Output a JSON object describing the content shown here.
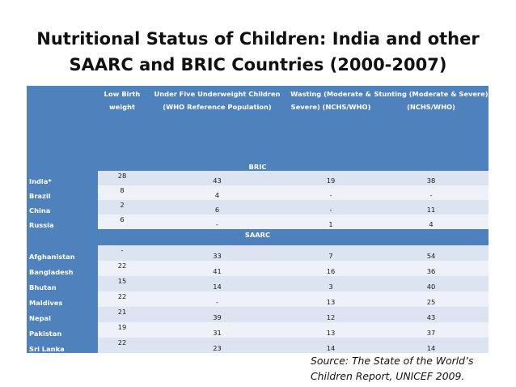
{
  "title_line1": "Nutritional Status of Children: India and other",
  "title_line2": "SAARC and BRIC Countries (2000-2007)",
  "columns": [
    "Low Birth weight",
    "Under Five Underweight Children (WHO Reference Population)",
    "Wasting (Moderate & Severe) (NCHS/WHO)",
    "Stunting (Moderate & Severe) (NCHS/WHO)"
  ],
  "sections": [
    {
      "name": "BRIC",
      "rows": [
        {
          "country": "India*",
          "values": [
            "28",
            "43",
            "19",
            "38"
          ]
        },
        {
          "country": "Brazil",
          "values": [
            "8",
            "4",
            "-",
            "-"
          ]
        },
        {
          "country": "China",
          "values": [
            "2",
            "6",
            "-",
            "11"
          ]
        },
        {
          "country": "Russia",
          "values": [
            "6",
            "-",
            "1",
            "4"
          ]
        }
      ]
    },
    {
      "name": "SAARC",
      "rows": [
        {
          "country": "Afghanistan",
          "values": [
            "-",
            "33",
            "7",
            "54"
          ]
        },
        {
          "country": "Bangladesh",
          "values": [
            "22",
            "41",
            "16",
            "36"
          ]
        },
        {
          "country": "Bhutan",
          "values": [
            "15",
            "14",
            "3",
            "40"
          ]
        },
        {
          "country": "Maldives",
          "values": [
            "22",
            "-",
            "13",
            "25"
          ]
        },
        {
          "country": "Nepal",
          "values": [
            "21",
            "39",
            "12",
            "43"
          ]
        },
        {
          "country": "Pakistan",
          "values": [
            "19",
            "31",
            "13",
            "37"
          ]
        },
        {
          "country": "Sri Lanka",
          "values": [
            "22",
            "23",
            "14",
            "14"
          ]
        }
      ]
    }
  ],
  "source_line1": "Source: The State of the World’s",
  "source_line2": "Children Report, UNICEF 2009."
}
